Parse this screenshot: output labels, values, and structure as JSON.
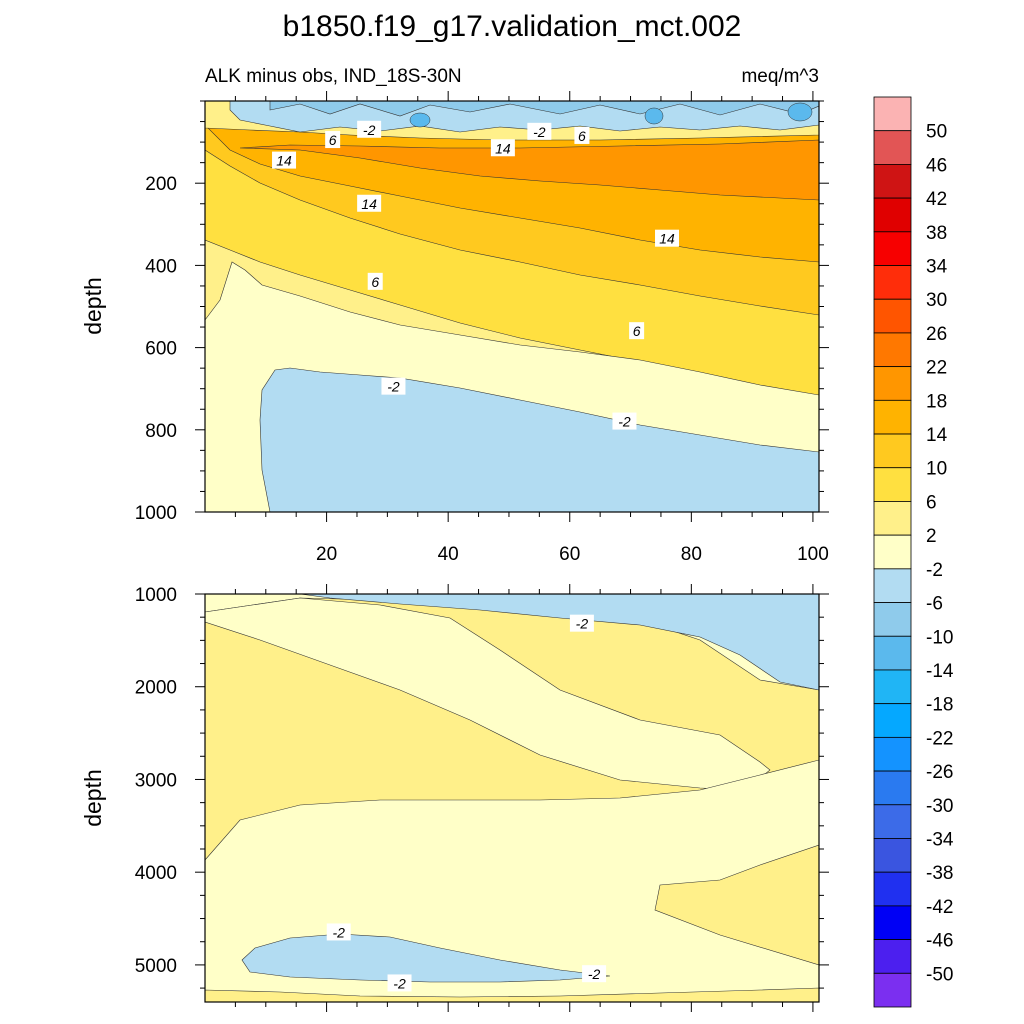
{
  "chart_data": {
    "type": "contour",
    "title": "b1850.f19_g17.validation_mct.002",
    "subtitle_left": "ALK minus obs, IND_18S-30N",
    "subtitle_right": "meq/m^3",
    "colorbar": {
      "levels": [
        "50",
        "46",
        "42",
        "38",
        "34",
        "30",
        "26",
        "22",
        "18",
        "14",
        "10",
        "6",
        "2",
        "-2",
        "-6",
        "-10",
        "-14",
        "-18",
        "-22",
        "-26",
        "-30",
        "-34",
        "-38",
        "-42",
        "-46",
        "-50"
      ],
      "colors": [
        "#fbb3b3",
        "#e25555",
        "#cf1414",
        "#e00000",
        "#f70000",
        "#ff2d0a",
        "#ff5500",
        "#ff7800",
        "#ff9600",
        "#ffb300",
        "#ffc91f",
        "#ffe040",
        "#fff08a",
        "#ffffc8",
        "#b2dcf2",
        "#8fcbeb",
        "#5bb9ed",
        "#20b5f5",
        "#05a8ff",
        "#1493ff",
        "#2a7af0",
        "#3c6be8",
        "#3a55e0",
        "#2030f0",
        "#0000f5",
        "#4c1fef",
        "#7b2ff0"
      ]
    },
    "panels": [
      {
        "name": "upper",
        "xlim": [
          0,
          101
        ],
        "ylim": [
          0,
          1000
        ],
        "xticks": [
          "20",
          "40",
          "60",
          "80",
          "100"
        ],
        "yticks": [
          "200",
          "400",
          "600",
          "800",
          "1000"
        ],
        "ylabel": "depth",
        "contour_labels": [
          {
            "text": "-2",
            "x": 27,
            "y": 70
          },
          {
            "text": "6",
            "x": 21,
            "y": 95
          },
          {
            "text": "-2",
            "x": 55,
            "y": 75
          },
          {
            "text": "6",
            "x": 62,
            "y": 85
          },
          {
            "text": "14",
            "x": 13,
            "y": 145
          },
          {
            "text": "14",
            "x": 49,
            "y": 115
          },
          {
            "text": "14",
            "x": 27,
            "y": 250
          },
          {
            "text": "14",
            "x": 76,
            "y": 335
          },
          {
            "text": "6",
            "x": 28,
            "y": 440
          },
          {
            "text": "6",
            "x": 71,
            "y": 560
          },
          {
            "text": "-2",
            "x": 31,
            "y": 695
          },
          {
            "text": "-2",
            "x": 69,
            "y": 780
          }
        ]
      },
      {
        "name": "lower",
        "xlim": [
          0,
          101
        ],
        "ylim": [
          1000,
          5400
        ],
        "xticks": [],
        "yticks": [
          "1000",
          "2000",
          "3000",
          "4000",
          "5000"
        ],
        "ylabel": "depth",
        "contour_labels": [
          {
            "text": "-2",
            "x": 62,
            "y": 1320
          },
          {
            "text": "-2",
            "x": 22,
            "y": 4650
          },
          {
            "text": "-2",
            "x": 64,
            "y": 5100
          },
          {
            "text": "-2",
            "x": 32,
            "y": 5200
          }
        ]
      }
    ]
  }
}
